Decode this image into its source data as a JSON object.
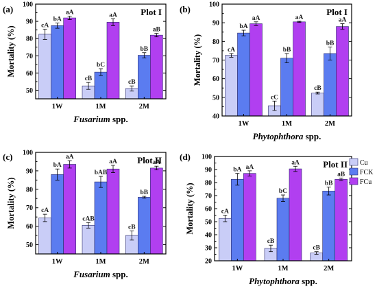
{
  "series_meta": [
    {
      "name": "Cu",
      "color": "#c9cdf7"
    },
    {
      "name": "FCK",
      "color": "#5b7cf0"
    },
    {
      "name": "FCu",
      "color": "#b13ff0"
    }
  ],
  "legend": {
    "position": "top-right of panel (d)",
    "items": [
      "Cu",
      "FCK",
      "FCu"
    ]
  },
  "chart_data": [
    {
      "type": "bar",
      "panel_label": "(a)",
      "title": "Plot I",
      "xlabel": "Fusarium spp.",
      "ylabel": "Mortality (%)",
      "ylim": [
        45,
        100
      ],
      "yticks": [
        50,
        60,
        70,
        80,
        90,
        100
      ],
      "categories": [
        "1W",
        "1M",
        "2M"
      ],
      "series": [
        {
          "name": "Cu",
          "values": [
            82.5,
            52.5,
            51.0
          ],
          "errors": [
            3.0,
            2.0,
            1.5
          ],
          "labels": [
            "cA",
            "cB",
            "cB"
          ]
        },
        {
          "name": "FCK",
          "values": [
            87.5,
            60.5,
            70.3
          ],
          "errors": [
            1.5,
            2.0,
            1.5
          ],
          "labels": [
            "bA",
            "bC",
            "bB"
          ]
        },
        {
          "name": "FCu",
          "values": [
            92.0,
            89.5,
            82.0
          ],
          "errors": [
            1.0,
            2.0,
            1.0
          ],
          "labels": [
            "aA",
            "aA",
            "aB"
          ]
        }
      ]
    },
    {
      "type": "bar",
      "panel_label": "(b)",
      "title": "Plot I",
      "xlabel": "Phytophthora spp.",
      "ylabel": "Mortality (%)",
      "ylim": [
        40,
        100
      ],
      "yticks": [
        40,
        50,
        60,
        70,
        80,
        90,
        100
      ],
      "categories": [
        "1W",
        "1M",
        "2M"
      ],
      "series": [
        {
          "name": "Cu",
          "values": [
            72.5,
            45.5,
            52.3
          ],
          "errors": [
            1.0,
            2.5,
            0.5
          ],
          "labels": [
            "cA",
            "cC",
            "cB"
          ]
        },
        {
          "name": "FCK",
          "values": [
            84.5,
            71.0,
            73.5
          ],
          "errors": [
            1.5,
            2.5,
            3.5
          ],
          "labels": [
            "bA",
            "bB",
            "bB"
          ]
        },
        {
          "name": "FCu",
          "values": [
            89.5,
            90.5,
            88.0
          ],
          "errors": [
            1.0,
            0.3,
            1.5
          ],
          "labels": [
            "aA",
            "aA",
            "aA"
          ]
        }
      ]
    },
    {
      "type": "bar",
      "panel_label": "(c)",
      "title": "Plot II",
      "xlabel": "Fusarium spp.",
      "ylabel": "Mortality (%)",
      "ylim": [
        45,
        100
      ],
      "yticks": [
        50,
        60,
        70,
        80,
        90,
        100
      ],
      "categories": [
        "1W",
        "1M",
        "2M"
      ],
      "series": [
        {
          "name": "Cu",
          "values": [
            64.5,
            60.5,
            55.0
          ],
          "errors": [
            2.0,
            1.5,
            2.5
          ],
          "labels": [
            "cA",
            "cAB",
            "cB"
          ]
        },
        {
          "name": "FCK",
          "values": [
            88.0,
            84.0,
            75.7
          ],
          "errors": [
            3.0,
            3.0,
            0.5
          ],
          "labels": [
            "bA",
            "bAB",
            "bB"
          ]
        },
        {
          "name": "FCu",
          "values": [
            93.5,
            91.0,
            91.5
          ],
          "errors": [
            2.0,
            2.0,
            1.0
          ],
          "labels": [
            "aA",
            "aA",
            "aA"
          ]
        }
      ]
    },
    {
      "type": "bar",
      "panel_label": "(d)",
      "title": "Plot II",
      "xlabel": "Phytophthora spp.",
      "ylabel": "Mortality (%)",
      "ylim": [
        20,
        100
      ],
      "yticks": [
        20,
        30,
        40,
        50,
        60,
        70,
        80,
        90,
        100
      ],
      "categories": [
        "1W",
        "1M",
        "2M"
      ],
      "series": [
        {
          "name": "Cu",
          "values": [
            52.5,
            29.5,
            26.0
          ],
          "errors": [
            2.5,
            2.5,
            1.0
          ],
          "labels": [
            "cA",
            "cB",
            "cB"
          ]
        },
        {
          "name": "FCK",
          "values": [
            82.5,
            68.0,
            73.5
          ],
          "errors": [
            4.5,
            2.5,
            3.0
          ],
          "labels": [
            "bA",
            "bC",
            "bB"
          ]
        },
        {
          "name": "FCu",
          "values": [
            87.0,
            90.5,
            82.5
          ],
          "errors": [
            2.0,
            2.0,
            1.0
          ],
          "labels": [
            "aA",
            "aA",
            "aB"
          ]
        }
      ]
    }
  ]
}
